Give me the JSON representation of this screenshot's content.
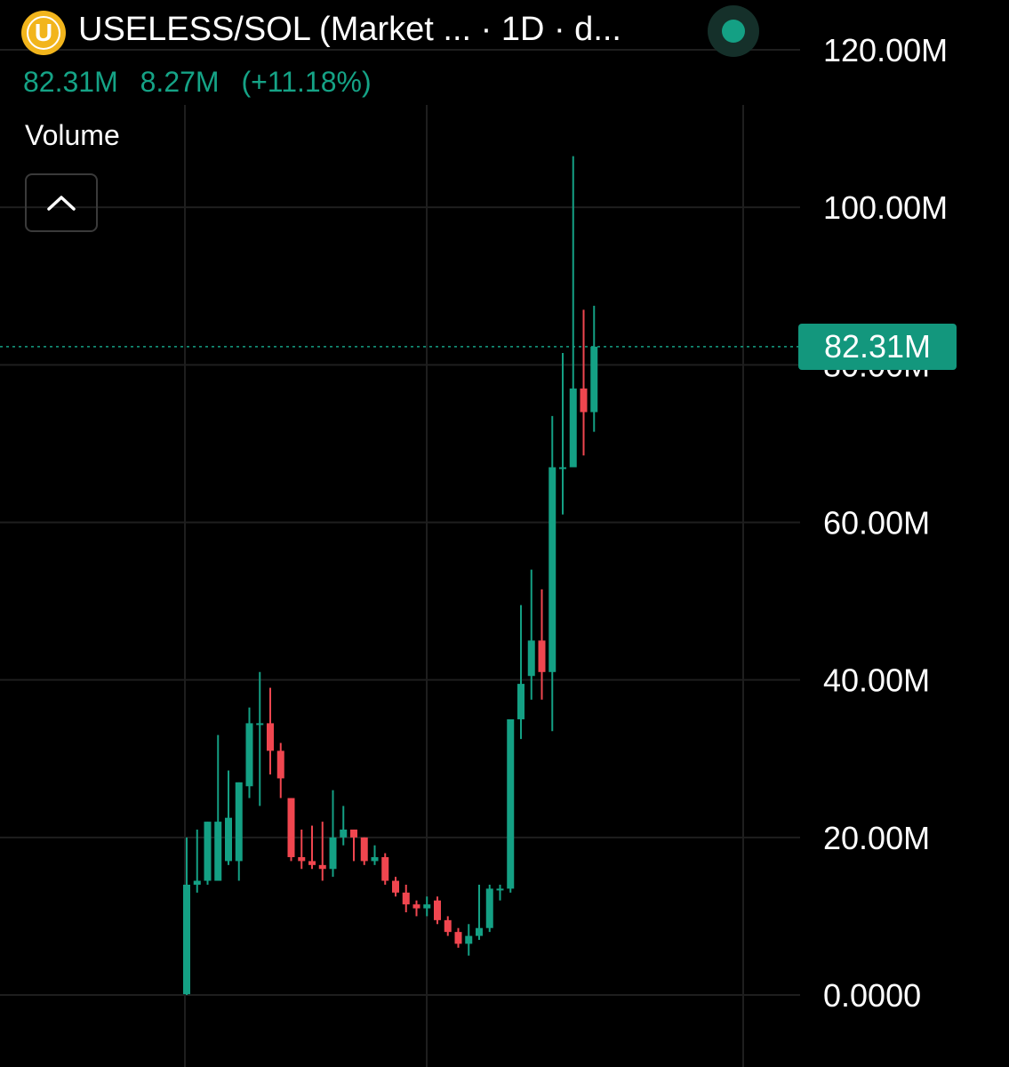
{
  "header": {
    "title": "USELESS/SOL (Market ... · 1D · d...",
    "logo_letter": "U",
    "last_value": "82.31M",
    "change_abs": "8.27M",
    "change_pct": "(+11.18%)",
    "status_color": "#14A084"
  },
  "indicator": {
    "volume_label": "Volume",
    "collapse_icon": "chevron-up-icon"
  },
  "price_tag": {
    "label": "82.31M",
    "value": 82.31
  },
  "colors": {
    "up": "#14A084",
    "down": "#F0464F",
    "background": "#000000",
    "grid": "#1e1e1e"
  },
  "chart_data": {
    "type": "candlestick",
    "y_axis": {
      "min": 0,
      "max": 120,
      "unit": "M",
      "ticks": [
        {
          "value": 120,
          "label": "120.00M"
        },
        {
          "value": 100,
          "label": "100.00M"
        },
        {
          "value": 80,
          "label": "80.00M"
        },
        {
          "value": 60,
          "label": "60.00M"
        },
        {
          "value": 40,
          "label": "40.00M"
        },
        {
          "value": 20,
          "label": "20.00M"
        },
        {
          "value": 0,
          "label": "0.0000"
        }
      ]
    },
    "grid": true,
    "last_price": 82.31,
    "candles": [
      {
        "o": 0.1,
        "h": 20.0,
        "l": 0.0,
        "c": 14.0
      },
      {
        "o": 14.0,
        "h": 21.0,
        "l": 13.0,
        "c": 14.5
      },
      {
        "o": 14.5,
        "h": 22.0,
        "l": 14.0,
        "c": 22.0
      },
      {
        "o": 14.5,
        "h": 33.0,
        "l": 14.5,
        "c": 22.0
      },
      {
        "o": 17.0,
        "h": 28.5,
        "l": 16.5,
        "c": 22.5
      },
      {
        "o": 17.0,
        "h": 27.0,
        "l": 14.5,
        "c": 27.0
      },
      {
        "o": 26.5,
        "h": 36.5,
        "l": 25.0,
        "c": 34.5
      },
      {
        "o": 34.5,
        "h": 41.0,
        "l": 24.0,
        "c": 34.5
      },
      {
        "o": 34.5,
        "h": 39.0,
        "l": 28.0,
        "c": 31.0
      },
      {
        "o": 31.0,
        "h": 32.0,
        "l": 25.0,
        "c": 27.5
      },
      {
        "o": 25.0,
        "h": 25.0,
        "l": 17.0,
        "c": 17.5
      },
      {
        "o": 17.5,
        "h": 21.0,
        "l": 16.0,
        "c": 17.0
      },
      {
        "o": 17.0,
        "h": 21.5,
        "l": 16.0,
        "c": 16.5
      },
      {
        "o": 16.5,
        "h": 22.0,
        "l": 14.5,
        "c": 16.0
      },
      {
        "o": 16.0,
        "h": 26.0,
        "l": 15.0,
        "c": 20.0
      },
      {
        "o": 20.0,
        "h": 24.0,
        "l": 19.0,
        "c": 21.0
      },
      {
        "o": 21.0,
        "h": 21.0,
        "l": 17.0,
        "c": 20.0
      },
      {
        "o": 20.0,
        "h": 20.0,
        "l": 16.5,
        "c": 17.0
      },
      {
        "o": 17.0,
        "h": 19.0,
        "l": 16.5,
        "c": 17.5
      },
      {
        "o": 17.5,
        "h": 18.0,
        "l": 14.0,
        "c": 14.5
      },
      {
        "o": 14.5,
        "h": 15.0,
        "l": 12.5,
        "c": 13.0
      },
      {
        "o": 13.0,
        "h": 14.0,
        "l": 10.5,
        "c": 11.5
      },
      {
        "o": 11.5,
        "h": 12.0,
        "l": 10.0,
        "c": 11.0
      },
      {
        "o": 11.0,
        "h": 12.5,
        "l": 10.0,
        "c": 11.5
      },
      {
        "o": 12.0,
        "h": 12.5,
        "l": 9.0,
        "c": 9.5
      },
      {
        "o": 9.5,
        "h": 10.0,
        "l": 7.5,
        "c": 8.0
      },
      {
        "o": 8.0,
        "h": 8.5,
        "l": 6.0,
        "c": 6.5
      },
      {
        "o": 6.5,
        "h": 9.0,
        "l": 5.0,
        "c": 7.5
      },
      {
        "o": 7.5,
        "h": 14.0,
        "l": 7.0,
        "c": 8.5
      },
      {
        "o": 8.5,
        "h": 14.0,
        "l": 8.0,
        "c": 13.5
      },
      {
        "o": 13.5,
        "h": 14.0,
        "l": 12.0,
        "c": 13.5
      },
      {
        "o": 13.5,
        "h": 35.0,
        "l": 13.0,
        "c": 35.0
      },
      {
        "o": 35.0,
        "h": 49.5,
        "l": 32.5,
        "c": 39.5
      },
      {
        "o": 40.5,
        "h": 54.0,
        "l": 37.5,
        "c": 45.0
      },
      {
        "o": 45.0,
        "h": 51.5,
        "l": 37.5,
        "c": 41.0
      },
      {
        "o": 41.0,
        "h": 73.5,
        "l": 33.5,
        "c": 67.0
      },
      {
        "o": 67.0,
        "h": 81.5,
        "l": 61.0,
        "c": 67.0
      },
      {
        "o": 67.0,
        "h": 106.5,
        "l": 67.0,
        "c": 77.0
      },
      {
        "o": 77.0,
        "h": 87.0,
        "l": 68.5,
        "c": 74.0
      },
      {
        "o": 74.0,
        "h": 87.5,
        "l": 71.5,
        "c": 82.31
      }
    ]
  }
}
